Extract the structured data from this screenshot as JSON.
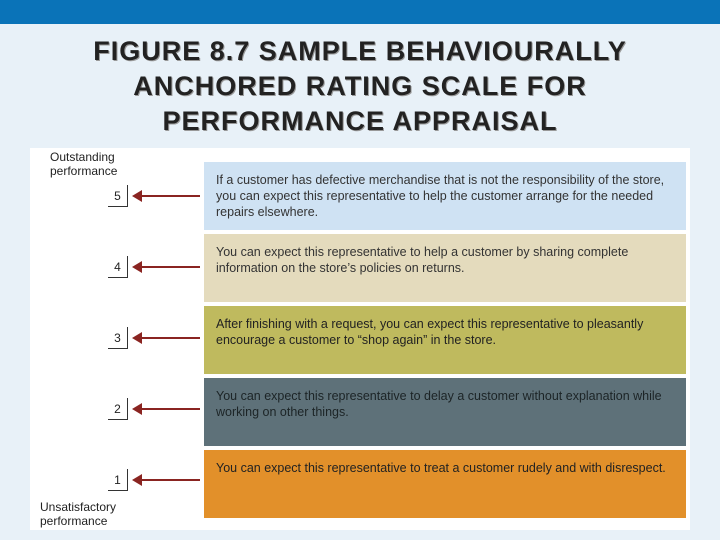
{
  "title": {
    "line1": "FIGURE 8.7 SAMPLE BEHAVIOURALLY",
    "line2": "ANCHORED RATING SCALE FOR",
    "line3": "PERFORMANCE APPRAISAL"
  },
  "scale": {
    "top_label": "Outstanding performance",
    "bottom_label": "Unsatisfactory performance"
  },
  "levels": [
    {
      "score": "5",
      "text": "If a customer has defective merchandise that is not the responsibility of the store, you can expect this representative to help the customer arrange for the needed repairs elsewhere.",
      "color": "#cfe2f3"
    },
    {
      "score": "4",
      "text": "You can expect this representative to help a customer by sharing complete information on the store’s policies on returns.",
      "color": "#e4dbbd"
    },
    {
      "score": "3",
      "text": "After finishing with a request, you can expect this representative to pleasantly encourage a customer to “shop again” in the store.",
      "color": "#bfba5e"
    },
    {
      "score": "2",
      "text": "You can expect this representative to delay a customer without explanation while working on other things.",
      "color": "#5e7179"
    },
    {
      "score": "1",
      "text": "You can expect this representative to treat a customer rudely and with disrespect.",
      "color": "#e2902a"
    }
  ],
  "colors": {
    "header_bar": "#0a73b8",
    "slide_background": "#e8f1f8",
    "arrow": "#8a2421"
  }
}
